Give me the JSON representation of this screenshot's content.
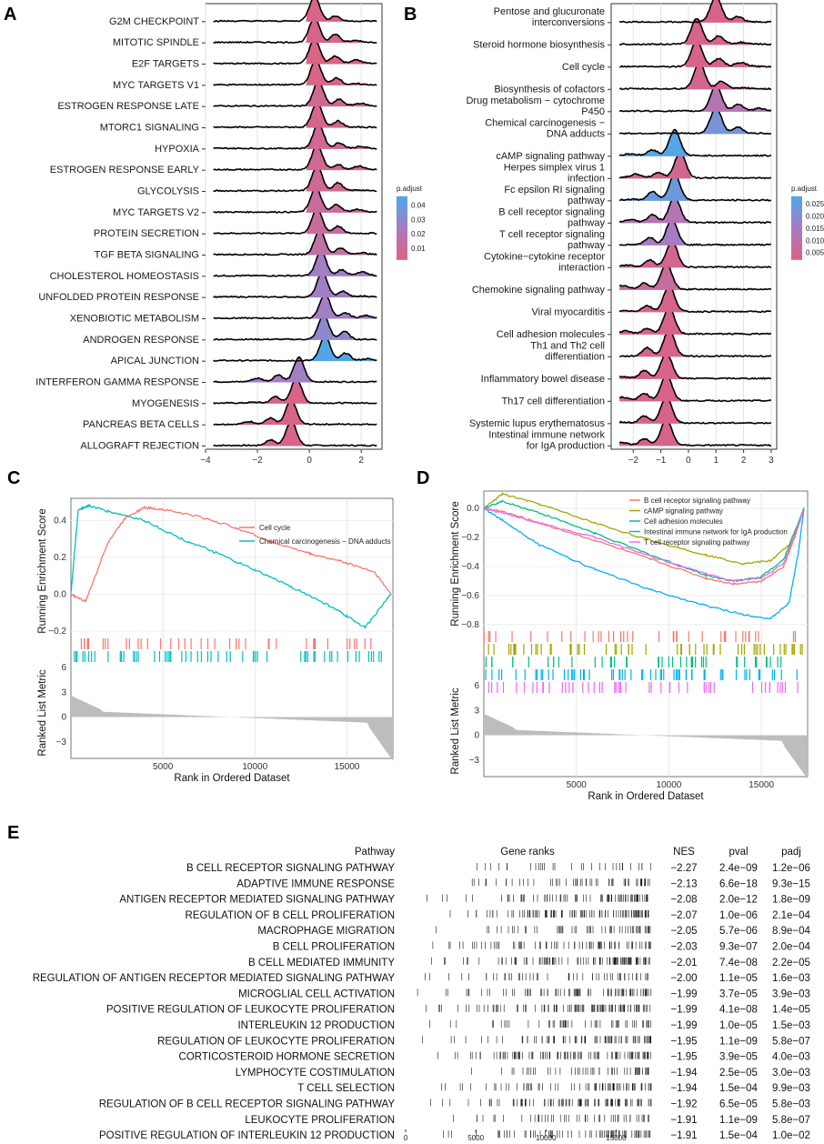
{
  "chart_data": [
    {
      "panel": "A",
      "type": "ridgeline",
      "categories": [
        "G2M CHECKPOINT",
        "MITOTIC SPINDLE",
        "E2F TARGETS",
        "MYC TARGETS V1",
        "ESTROGEN RESPONSE LATE",
        "MTORC1 SIGNALING",
        "HYPOXIA",
        "ESTROGEN RESPONSE EARLY",
        "GLYCOLYSIS",
        "MYC TARGETS V2",
        "PROTEIN SECRETION",
        "TGF BETA SIGNALING",
        "CHOLESTEROL HOMEOSTASIS",
        "UNFOLDED PROTEIN RESPONSE",
        "XENOBIOTIC METABOLISM",
        "ANDROGEN RESPONSE",
        "APICAL JUNCTION",
        "INTERFERON GAMMA RESPONSE",
        "MYOGENESIS",
        "PANCREAS BETA CELLS",
        "ALLOGRAFT REJECTION"
      ],
      "peaks": [
        0.2,
        0.2,
        0.2,
        0.25,
        0.35,
        0.3,
        0.35,
        0.3,
        0.3,
        0.25,
        0.3,
        0.4,
        0.45,
        0.5,
        0.6,
        0.55,
        0.6,
        -0.4,
        -0.5,
        -0.7,
        -0.7
      ],
      "p_adjust": [
        0.005,
        0.006,
        0.004,
        0.005,
        0.008,
        0.007,
        0.008,
        0.008,
        0.009,
        0.012,
        0.012,
        0.015,
        0.025,
        0.025,
        0.025,
        0.03,
        0.045,
        0.025,
        0.005,
        0.005,
        0.005
      ],
      "xticks": [
        -4,
        -2,
        0,
        2
      ],
      "xlim": [
        -4,
        2.8
      ],
      "legend_title": "p.adjust",
      "legend_ticks": [
        "0.04",
        "0.03",
        "0.02",
        "0.01"
      ],
      "legend_range": [
        0.002,
        0.046
      ]
    },
    {
      "panel": "B",
      "type": "ridgeline",
      "categories": [
        "Pentose and glucuronate\ninterconversions",
        "Steroid hormone biosynthesis",
        "Cell cycle",
        "Biosynthesis of cofactors",
        "Drug metabolism − cytochrome\nP450",
        "Chemical carcinogenesis −\nDNA adducts",
        "cAMP signaling pathway",
        "Herpes simplex virus 1\ninfection",
        "Fc epsilon RI signaling\npathway",
        "B cell receptor signaling\npathway",
        "T cell receptor signaling\npathway",
        "Cytokine−cytokine receptor\ninteraction",
        "Chemokine signaling pathway",
        "Viral myocarditis",
        "Cell adhesion molecules",
        "Th1 and Th2 cell\ndifferentiation",
        "Inflammatory bowel disease",
        "Th17 cell differentiation",
        "Systemic lupus erythematosus",
        "Intestinal immune network\nfor IgA production"
      ],
      "peaks": [
        1.0,
        0.3,
        0.3,
        0.4,
        1.0,
        1.0,
        -0.5,
        -0.3,
        -0.5,
        -0.5,
        -0.6,
        -0.6,
        -0.8,
        -0.7,
        -0.7,
        -0.7,
        -0.8,
        -0.8,
        -0.8,
        -0.8
      ],
      "p_adjust": [
        0.004,
        0.004,
        0.004,
        0.005,
        0.012,
        0.022,
        0.027,
        0.005,
        0.024,
        0.012,
        0.015,
        0.005,
        0.008,
        0.004,
        0.004,
        0.004,
        0.004,
        0.004,
        0.004,
        0.004
      ],
      "xticks": [
        -2,
        -1,
        0,
        1,
        2,
        3
      ],
      "xlim": [
        -2.8,
        3.2
      ],
      "legend_title": "p.adjust",
      "legend_ticks": [
        "0.025",
        "0.020",
        "0.015",
        "0.010",
        "0.005"
      ],
      "legend_range": [
        0.002,
        0.028
      ]
    },
    {
      "panel": "C",
      "type": "line",
      "ylabel": "Running Enrichment Score",
      "ylabel2": "Ranked List Metric",
      "xlabel": "Rank in Ordered Dataset",
      "xticks": [
        5000,
        10000,
        15000
      ],
      "xlim": [
        0,
        17500
      ],
      "yticks": [
        -0.2,
        0.0,
        0.2,
        0.4
      ],
      "ylim": [
        -0.22,
        0.52
      ],
      "metric_ticks": [
        6,
        3,
        0,
        -3
      ],
      "metric_lim": [
        -5,
        6
      ],
      "series": [
        {
          "name": "Cell cycle",
          "color": "#F8766D",
          "x": [
            0,
            800,
            2000,
            3000,
            4000,
            5000,
            7000,
            9000,
            11000,
            13000,
            15000,
            16500,
            17400
          ],
          "y": [
            0.0,
            -0.04,
            0.28,
            0.42,
            0.47,
            0.46,
            0.42,
            0.36,
            0.28,
            0.22,
            0.17,
            0.12,
            0.0
          ]
        },
        {
          "name": "Chemical carcinogenesis − DNA adducts",
          "color": "#00BFC4",
          "x": [
            0,
            400,
            1000,
            2000,
            4000,
            6000,
            8000,
            10000,
            12000,
            14000,
            15000,
            16000,
            17400
          ],
          "y": [
            0.0,
            0.46,
            0.48,
            0.45,
            0.4,
            0.3,
            0.22,
            0.13,
            0.04,
            -0.06,
            -0.12,
            -0.18,
            0.0
          ]
        }
      ]
    },
    {
      "panel": "D",
      "type": "line",
      "ylabel": "Running Enrichment Score",
      "ylabel2": "Ranked List Metric",
      "xlabel": "Rank in Ordered Dataset",
      "xticks": [
        5000,
        10000,
        15000
      ],
      "xlim": [
        0,
        17500
      ],
      "yticks": [
        0.0,
        -0.2,
        -0.4,
        -0.6,
        -0.8
      ],
      "ylim": [
        -0.82,
        0.12
      ],
      "metric_ticks": [
        6,
        3,
        0,
        -3
      ],
      "metric_lim": [
        -5,
        6
      ],
      "series": [
        {
          "name": "B cell receptor signaling pathway",
          "color": "#F8766D",
          "x": [
            0,
            1000,
            3000,
            6000,
            9000,
            12000,
            13500,
            15000,
            16200,
            16800,
            17300
          ],
          "y": [
            0.0,
            -0.02,
            -0.1,
            -0.22,
            -0.35,
            -0.48,
            -0.52,
            -0.5,
            -0.4,
            -0.2,
            0.0
          ]
        },
        {
          "name": "cAMP signaling pathway",
          "color": "#A3A500",
          "x": [
            0,
            1000,
            3000,
            6000,
            9000,
            12000,
            14000,
            15500,
            16500,
            17000,
            17300
          ],
          "y": [
            0.0,
            0.1,
            0.03,
            -0.1,
            -0.22,
            -0.32,
            -0.38,
            -0.36,
            -0.25,
            -0.1,
            0.0
          ]
        },
        {
          "name": "Cell adhesion molecules",
          "color": "#00BF7D",
          "x": [
            0,
            1000,
            3000,
            6000,
            9000,
            12000,
            13500,
            15000,
            16200,
            17000,
            17300
          ],
          "y": [
            0.0,
            0.05,
            -0.03,
            -0.17,
            -0.32,
            -0.46,
            -0.5,
            -0.47,
            -0.35,
            -0.1,
            0.0
          ]
        },
        {
          "name": "Intestinal immune network for IgA production",
          "color": "#00B0F6",
          "x": [
            0,
            1000,
            3000,
            6000,
            9000,
            12000,
            14000,
            15500,
            16500,
            17000,
            17300
          ],
          "y": [
            0.0,
            -0.08,
            -0.25,
            -0.42,
            -0.56,
            -0.67,
            -0.73,
            -0.76,
            -0.65,
            -0.3,
            0.0
          ]
        },
        {
          "name": "T cell receptor signaling pathway",
          "color": "#E76BF3",
          "x": [
            0,
            1000,
            3000,
            6000,
            9000,
            12000,
            13500,
            15000,
            16200,
            17000,
            17300
          ],
          "y": [
            0.0,
            -0.03,
            -0.1,
            -0.2,
            -0.33,
            -0.45,
            -0.5,
            -0.48,
            -0.38,
            -0.12,
            0.0
          ]
        }
      ]
    },
    {
      "panel": "E",
      "type": "table",
      "headers": [
        "Pathway",
        "Gene ranks",
        "NES",
        "pval",
        "padj"
      ],
      "rows": [
        [
          "B CELL RECEPTOR SIGNALING PATHWAY",
          "−2.27",
          "2.4e−09",
          "1.2e−06"
        ],
        [
          "ADAPTIVE IMMUNE RESPONSE",
          "−2.13",
          "6.6e−18",
          "9.3e−15"
        ],
        [
          "ANTIGEN RECEPTOR MEDIATED SIGNALING PATHWAY",
          "−2.08",
          "2.0e−12",
          "1.8e−09"
        ],
        [
          "REGULATION OF B CELL PROLIFERATION",
          "−2.07",
          "1.0e−06",
          "2.1e−04"
        ],
        [
          "MACROPHAGE MIGRATION",
          "−2.05",
          "5.7e−06",
          "8.9e−04"
        ],
        [
          "B CELL PROLIFERATION",
          "−2.03",
          "9.3e−07",
          "2.0e−04"
        ],
        [
          "B CELL MEDIATED IMMUNITY",
          "−2.01",
          "7.4e−08",
          "2.2e−05"
        ],
        [
          "REGULATION OF ANTIGEN RECEPTOR MEDIATED SIGNALING PATHWAY",
          "−2.00",
          "1.1e−05",
          "1.6e−03"
        ],
        [
          "MICROGLIAL CELL ACTIVATION",
          "−1.99",
          "3.7e−05",
          "3.9e−03"
        ],
        [
          "POSITIVE REGULATION OF LEUKOCYTE PROLIFERATION",
          "−1.99",
          "4.1e−08",
          "1.4e−05"
        ],
        [
          "INTERLEUKIN 12 PRODUCTION",
          "−1.99",
          "1.0e−05",
          "1.5e−03"
        ],
        [
          "REGULATION OF LEUKOCYTE PROLIFERATION",
          "−1.95",
          "1.1e−09",
          "5.8e−07"
        ],
        [
          "CORTICOSTEROID HORMONE SECRETION",
          "−1.95",
          "3.9e−05",
          "4.0e−03"
        ],
        [
          "LYMPHOCYTE COSTIMULATION",
          "−1.94",
          "2.5e−05",
          "3.0e−03"
        ],
        [
          "T CELL SELECTION",
          "−1.94",
          "1.5e−04",
          "9.9e−03"
        ],
        [
          "REGULATION OF B CELL RECEPTOR SIGNALING PATHWAY",
          "−1.92",
          "6.5e−05",
          "5.8e−03"
        ],
        [
          "LEUKOCYTE PROLIFERATION",
          "−1.91",
          "1.1e−09",
          "5.8e−07"
        ],
        [
          "POSITIVE REGULATION OF INTERLEUKIN 12 PRODUCTION",
          "−1.91",
          "1.5e−04",
          "1.0e−02"
        ]
      ],
      "gene_rank_xticks": [
        0,
        5000,
        10000,
        15000
      ],
      "gene_rank_xlim": [
        0,
        17500
      ]
    }
  ]
}
